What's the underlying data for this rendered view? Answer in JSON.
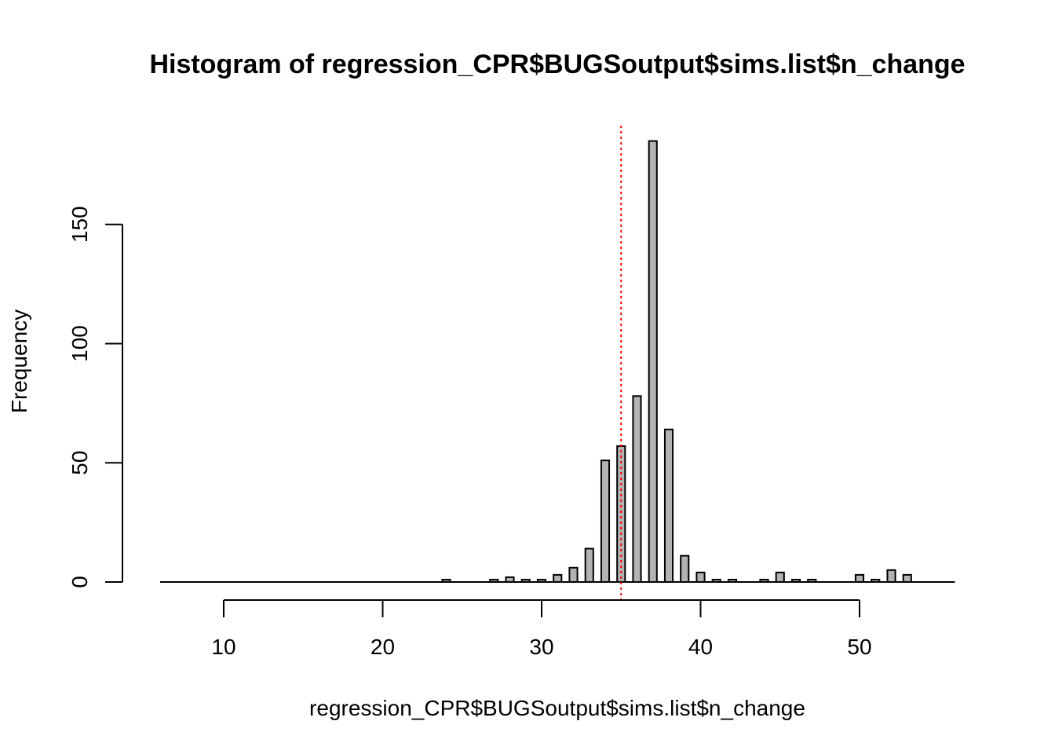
{
  "chart_data": {
    "type": "bar",
    "title": "Histogram of regression_CPR$BUGSoutput$sims.list$n_change",
    "xlabel": "regression_CPR$BUGSoutput$sims.list$n_change",
    "ylabel": "Frequency",
    "xlim": [
      6,
      56
    ],
    "ylim": [
      0,
      185
    ],
    "x_ticks": [
      10,
      20,
      30,
      40,
      50
    ],
    "y_ticks": [
      0,
      50,
      100,
      150
    ],
    "bar_width": 0.5,
    "x": [
      24,
      27,
      28,
      29,
      30,
      31,
      32,
      33,
      34,
      35,
      36,
      37,
      38,
      39,
      40,
      41,
      42,
      44,
      45,
      46,
      47,
      50,
      51,
      52,
      53
    ],
    "values": [
      1,
      1,
      2,
      1,
      1,
      3,
      6,
      14,
      51,
      57,
      78,
      185,
      64,
      11,
      4,
      1,
      1,
      1,
      4,
      1,
      1,
      3,
      1,
      5,
      3
    ],
    "reference_line": {
      "x": 35,
      "style": "dotted",
      "color": "#ff0000"
    },
    "bar_fill": "#b3b3b3",
    "bar_stroke": "#000000",
    "grid": false
  }
}
